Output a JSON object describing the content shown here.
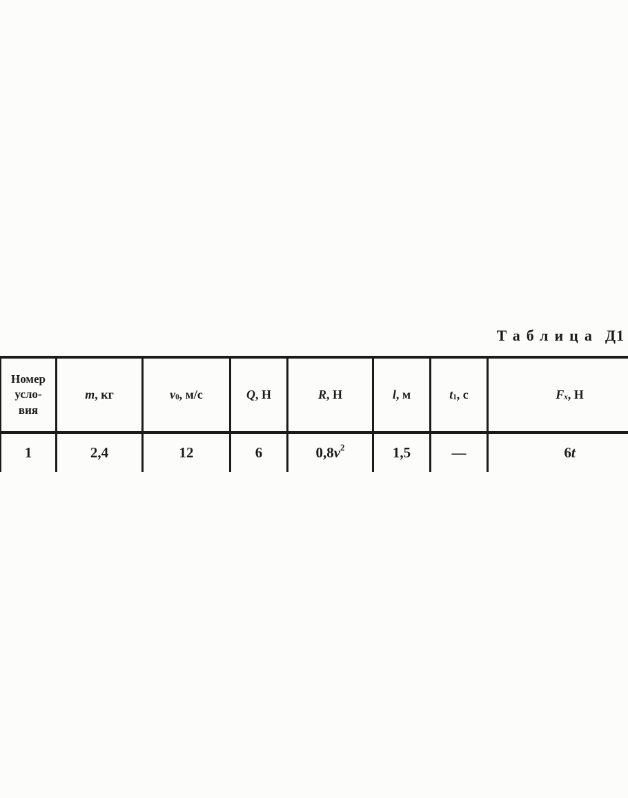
{
  "page": {
    "background": "#fcfcfb",
    "line_color": "#1b1b1b",
    "title": {
      "word": "Таблица",
      "number": "Д1"
    }
  },
  "table": {
    "header": [
      {
        "name": "condition-number",
        "segments": [
          {
            "t": "Номер\nусло-\nвия"
          }
        ]
      },
      {
        "name": "mass",
        "segments": [
          {
            "t": "m",
            "i": true
          },
          {
            "t": ",  кг"
          }
        ]
      },
      {
        "name": "initial-velocity",
        "segments": [
          {
            "t": "v",
            "i": true
          },
          {
            "t": "0",
            "sub": true
          },
          {
            "t": ",  м/с"
          }
        ]
      },
      {
        "name": "force-q",
        "segments": [
          {
            "t": "Q",
            "i": true
          },
          {
            "t": ",  Н"
          }
        ]
      },
      {
        "name": "force-r",
        "segments": [
          {
            "t": "R",
            "i": true
          },
          {
            "t": ",  Н"
          }
        ]
      },
      {
        "name": "length-l",
        "segments": [
          {
            "t": "l",
            "i": true
          },
          {
            "t": ",  м"
          }
        ]
      },
      {
        "name": "time-t1",
        "segments": [
          {
            "t": "t",
            "i": true
          },
          {
            "t": "1",
            "sub": true
          },
          {
            "t": ",  с"
          }
        ]
      },
      {
        "name": "force-fx",
        "segments": [
          {
            "t": "F",
            "i": true
          },
          {
            "t": "x",
            "i": true,
            "sub": true
          },
          {
            "t": ",  Н"
          }
        ]
      }
    ],
    "rows": [
      {
        "cells": [
          [
            {
              "t": "1"
            }
          ],
          [
            {
              "t": "2,4"
            }
          ],
          [
            {
              "t": "12"
            }
          ],
          [
            {
              "t": "6"
            }
          ],
          [
            {
              "t": "0,8"
            },
            {
              "t": "v",
              "i": true
            },
            {
              "t": "2",
              "sup": true
            }
          ],
          [
            {
              "t": "1,5"
            }
          ],
          [
            {
              "t": "—"
            }
          ],
          [
            {
              "t": "6"
            },
            {
              "t": "t",
              "i": true
            }
          ]
        ]
      }
    ]
  }
}
